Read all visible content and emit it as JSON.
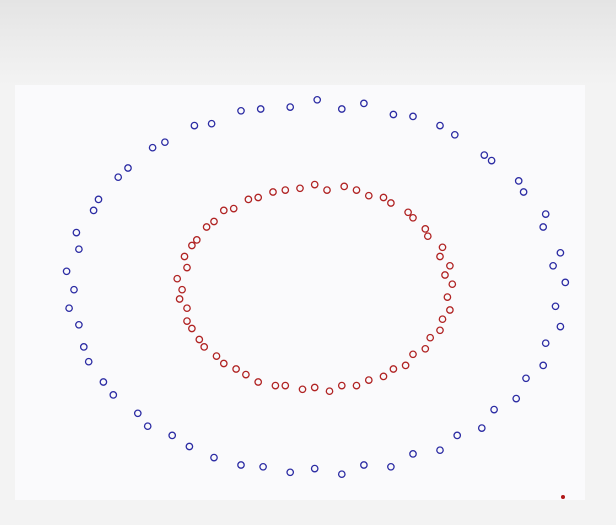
{
  "chart_data": {
    "type": "scatter",
    "title": "",
    "xlabel": "",
    "ylabel": "",
    "xlim": [
      -1.22,
      1.1
    ],
    "ylim": [
      -1.15,
      1.1
    ],
    "grid": false,
    "axes_visible": false,
    "marker": "hollow-circle",
    "series": [
      {
        "color": "#2b2ba3",
        "points": [
          [
            1.02,
            0.03
          ],
          [
            0.97,
            0.12
          ],
          [
            1.0,
            0.19
          ],
          [
            0.93,
            0.33
          ],
          [
            0.94,
            0.4
          ],
          [
            0.85,
            0.52
          ],
          [
            0.83,
            0.58
          ],
          [
            0.72,
            0.69
          ],
          [
            0.69,
            0.72
          ],
          [
            0.57,
            0.83
          ],
          [
            0.51,
            0.88
          ],
          [
            0.4,
            0.93
          ],
          [
            0.32,
            0.94
          ],
          [
            0.2,
            1.0
          ],
          [
            0.11,
            0.97
          ],
          [
            0.01,
            1.02
          ],
          [
            -0.1,
            0.98
          ],
          [
            -0.22,
            0.97
          ],
          [
            -0.3,
            0.96
          ],
          [
            -0.42,
            0.89
          ],
          [
            -0.49,
            0.88
          ],
          [
            -0.61,
            0.79
          ],
          [
            -0.66,
            0.76
          ],
          [
            -0.76,
            0.65
          ],
          [
            -0.8,
            0.6
          ],
          [
            -0.88,
            0.48
          ],
          [
            -0.9,
            0.42
          ],
          [
            -0.97,
            0.3
          ],
          [
            -0.96,
            0.21
          ],
          [
            -1.01,
            0.09
          ],
          [
            -0.98,
            -0.01
          ],
          [
            -1.0,
            -0.11
          ],
          [
            -0.96,
            -0.2
          ],
          [
            -0.94,
            -0.32
          ],
          [
            -0.92,
            -0.4
          ],
          [
            -0.86,
            -0.51
          ],
          [
            -0.82,
            -0.58
          ],
          [
            -0.72,
            -0.68
          ],
          [
            -0.68,
            -0.75
          ],
          [
            -0.58,
            -0.8
          ],
          [
            -0.51,
            -0.86
          ],
          [
            -0.41,
            -0.92
          ],
          [
            -0.3,
            -0.96
          ],
          [
            -0.21,
            -0.97
          ],
          [
            -0.1,
            -1.0
          ],
          [
            0.0,
            -0.98
          ],
          [
            0.11,
            -1.01
          ],
          [
            0.2,
            -0.96
          ],
          [
            0.31,
            -0.97
          ],
          [
            0.4,
            -0.9
          ],
          [
            0.51,
            -0.88
          ],
          [
            0.58,
            -0.8
          ],
          [
            0.68,
            -0.76
          ],
          [
            0.73,
            -0.66
          ],
          [
            0.82,
            -0.6
          ],
          [
            0.86,
            -0.49
          ],
          [
            0.93,
            -0.42
          ],
          [
            0.94,
            -0.3
          ],
          [
            1.0,
            -0.21
          ],
          [
            0.98,
            -0.1
          ]
        ]
      },
      {
        "color": "#b02323",
        "points": [
          [
            0.56,
            0.02
          ],
          [
            0.53,
            0.07
          ],
          [
            0.55,
            0.12
          ],
          [
            0.51,
            0.17
          ],
          [
            0.52,
            0.22
          ],
          [
            0.46,
            0.28
          ],
          [
            0.45,
            0.32
          ],
          [
            0.4,
            0.38
          ],
          [
            0.38,
            0.41
          ],
          [
            0.31,
            0.46
          ],
          [
            0.28,
            0.49
          ],
          [
            0.22,
            0.5
          ],
          [
            0.17,
            0.53
          ],
          [
            0.12,
            0.55
          ],
          [
            0.05,
            0.53
          ],
          [
            0.0,
            0.56
          ],
          [
            -0.06,
            0.54
          ],
          [
            -0.12,
            0.53
          ],
          [
            -0.17,
            0.52
          ],
          [
            -0.23,
            0.49
          ],
          [
            -0.27,
            0.48
          ],
          [
            -0.33,
            0.43
          ],
          [
            -0.37,
            0.42
          ],
          [
            -0.41,
            0.36
          ],
          [
            -0.44,
            0.33
          ],
          [
            -0.48,
            0.26
          ],
          [
            -0.5,
            0.23
          ],
          [
            -0.53,
            0.17
          ],
          [
            -0.52,
            0.11
          ],
          [
            -0.56,
            0.05
          ],
          [
            -0.54,
            -0.01
          ],
          [
            -0.55,
            -0.06
          ],
          [
            -0.52,
            -0.11
          ],
          [
            -0.52,
            -0.18
          ],
          [
            -0.5,
            -0.22
          ],
          [
            -0.47,
            -0.28
          ],
          [
            -0.45,
            -0.32
          ],
          [
            -0.4,
            -0.37
          ],
          [
            -0.37,
            -0.41
          ],
          [
            -0.32,
            -0.44
          ],
          [
            -0.28,
            -0.47
          ],
          [
            -0.23,
            -0.51
          ],
          [
            -0.16,
            -0.53
          ],
          [
            -0.12,
            -0.53
          ],
          [
            -0.05,
            -0.55
          ],
          [
            0.0,
            -0.54
          ],
          [
            0.06,
            -0.56
          ],
          [
            0.11,
            -0.53
          ],
          [
            0.17,
            -0.53
          ],
          [
            0.22,
            -0.5
          ],
          [
            0.28,
            -0.48
          ],
          [
            0.32,
            -0.44
          ],
          [
            0.37,
            -0.42
          ],
          [
            0.4,
            -0.36
          ],
          [
            0.45,
            -0.33
          ],
          [
            0.47,
            -0.27
          ],
          [
            0.51,
            -0.23
          ],
          [
            0.52,
            -0.17
          ],
          [
            0.55,
            -0.12
          ],
          [
            0.54,
            -0.05
          ]
        ]
      }
    ]
  }
}
